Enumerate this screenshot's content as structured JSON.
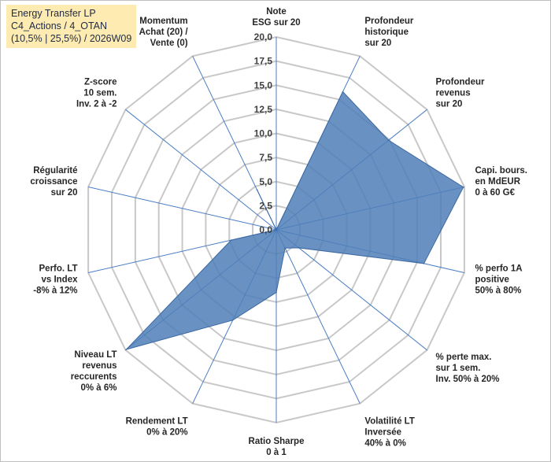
{
  "title_lines": [
    "Energy Transfer LP",
    "C4_Actions / 4_OTAN",
    "(10,5% | 25,5%) / 2026W09"
  ],
  "chart_data": {
    "type": "radar",
    "title": "Energy Transfer LP",
    "rmin": 0,
    "rmax": 20,
    "ticks": [
      "0,0",
      "2,5",
      "5,0",
      "7,5",
      "10,0",
      "12,5",
      "15,0",
      "17,5",
      "20,0"
    ],
    "tick_values": [
      0,
      2.5,
      5,
      7.5,
      10,
      12.5,
      15,
      17.5,
      20
    ],
    "axes": [
      {
        "lines": [
          "Note",
          "ESG sur 20"
        ]
      },
      {
        "lines": [
          "Profondeur",
          "historique",
          "sur 20"
        ]
      },
      {
        "lines": [
          "Profondeur",
          "revenus",
          "sur 20"
        ]
      },
      {
        "lines": [
          "Capi. bours.",
          "en MdEUR",
          "0 à 60 G€"
        ]
      },
      {
        "lines": [
          "% perfo 1A",
          "positive",
          "50% à 80%"
        ]
      },
      {
        "lines": [
          "% perte max.",
          "sur 1 sem.",
          "Inv. 50% à 20%"
        ]
      },
      {
        "lines": [
          "Volatilité LT",
          "Inversée",
          "40% à 0%"
        ]
      },
      {
        "lines": [
          "Ratio Sharpe",
          "0 à 1"
        ]
      },
      {
        "lines": [
          "Rendement LT",
          "0% à 20%"
        ]
      },
      {
        "lines": [
          "Niveau LT",
          "revenus",
          "reccurents",
          "0% à 6%"
        ]
      },
      {
        "lines": [
          "Perfo. LT",
          "vs Index",
          "-8% à 12%"
        ]
      },
      {
        "lines": [
          "Régularité",
          "croissance",
          "sur 20"
        ]
      },
      {
        "lines": [
          "Z-score",
          "10 sem.",
          "Inv. 2 à -2"
        ]
      },
      {
        "lines": [
          "Momentum",
          "Achat (20) /",
          "Vente (0)"
        ]
      }
    ],
    "series": [
      {
        "values": [
          0,
          15.9,
          14.9,
          19.9,
          15.7,
          3.0,
          2.1,
          6.5,
          10.4,
          19.9,
          4.8,
          0,
          0,
          4.6
        ]
      }
    ],
    "colors": {
      "fill": "#4f7fb8",
      "stroke": "#3c68a2",
      "spoke": "#4a7dc4",
      "grid": "#c8c8c8"
    },
    "grid": true,
    "legend": "none"
  }
}
